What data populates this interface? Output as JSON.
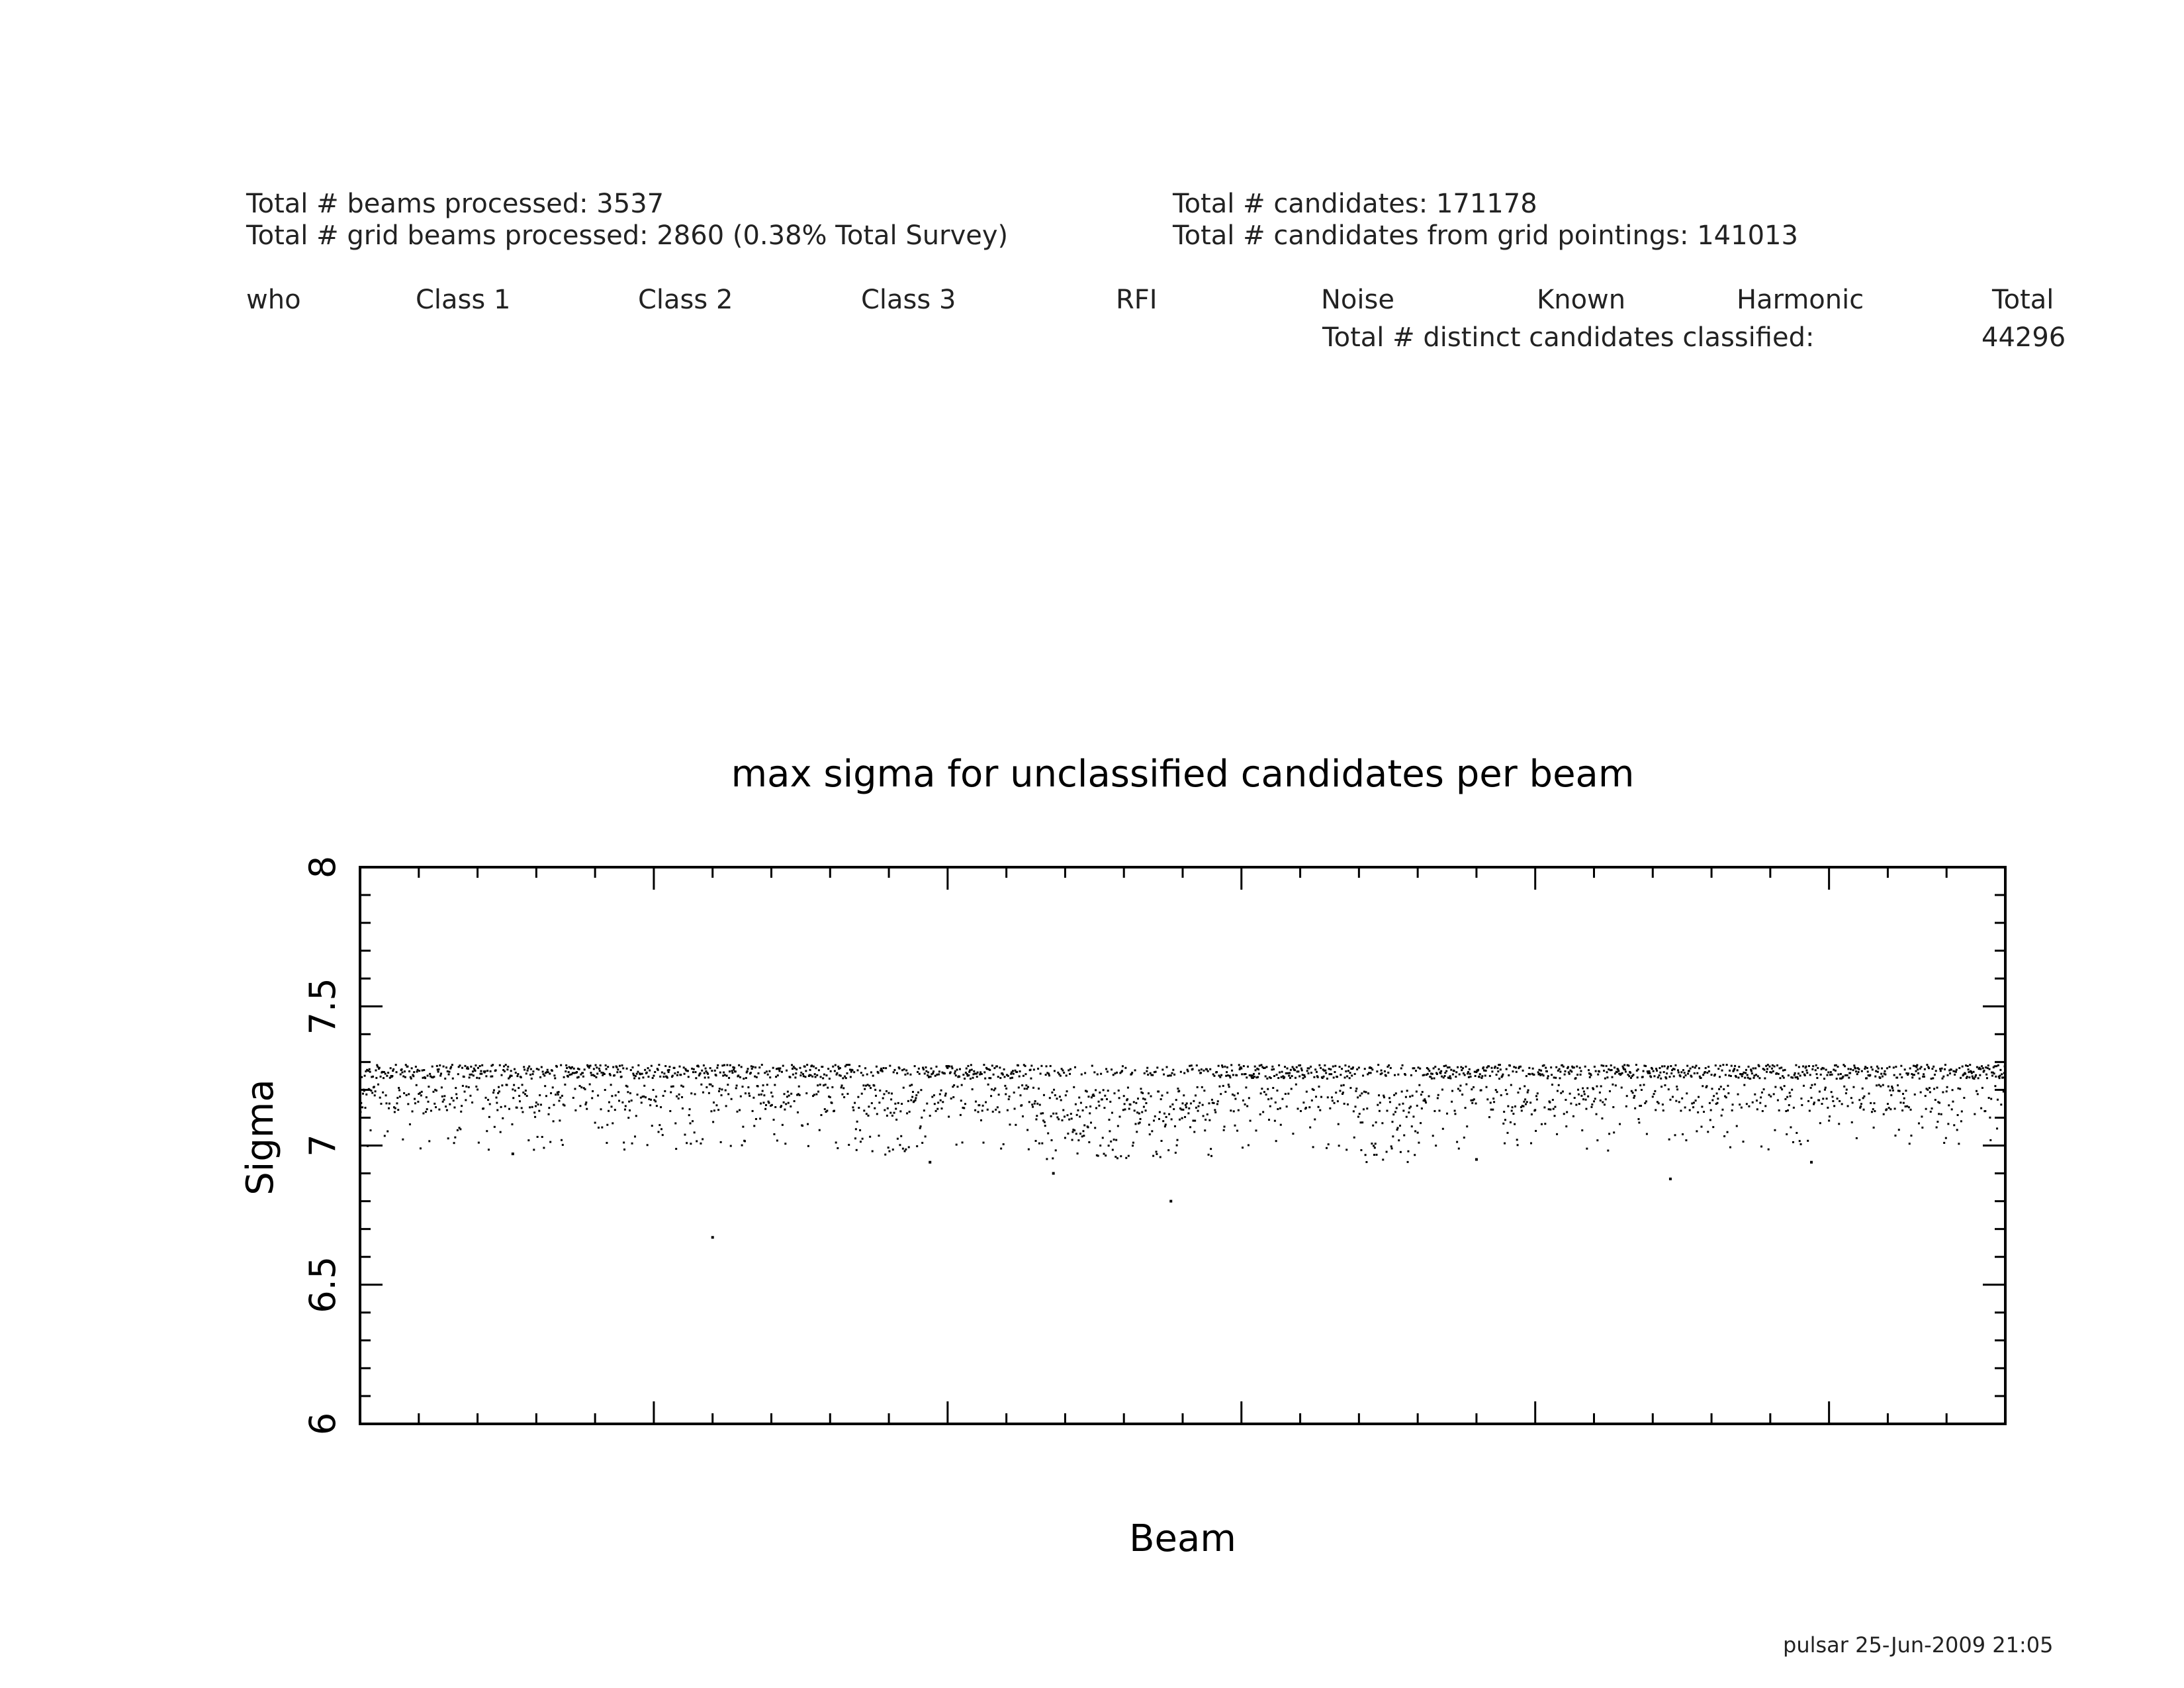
{
  "summary": {
    "beams_processed": "Total # beams processed: 3537",
    "grid_beams_processed": "Total # grid beams processed: 2860 (0.38% Total Survey)",
    "total_candidates": "Total # candidates: 171178",
    "grid_candidates": "Total # candidates from grid pointings: 141013"
  },
  "class_table": {
    "headers": [
      "who",
      "Class 1",
      "Class 2",
      "Class 3",
      "RFI",
      "Noise",
      "Known",
      "Harmonic",
      "Total"
    ],
    "distinct_label": "Total # distinct candidates classified:",
    "distinct_value": "44296"
  },
  "footer": {
    "stamp": "pulsar 25-Jun-2009 21:05"
  },
  "colors": {
    "ink": "#000000",
    "background": "#ffffff"
  },
  "chart_data": {
    "type": "scatter",
    "title": "max sigma for unclassified candidates per beam",
    "xlabel": "Beam",
    "ylabel": "Sigma",
    "ylim": [
      6,
      8
    ],
    "xlim": [
      0,
      2800
    ],
    "yticks": [
      "6",
      "6.5",
      "7",
      "7.5",
      "8"
    ],
    "x_tick_labels": "none",
    "grid": false,
    "marker": "dot",
    "series": [
      {
        "values_summary": "approximately one max-sigma point per beam; dense band between 7.0 and 7.29 with the upper edge near 7.29; dips near 7.1-7.2 around beams ~850-950, ~1150-1450 and ~1700-1800",
        "outliers": [
          {
            "x": 600,
            "y": 6.67
          },
          {
            "x": 1380,
            "y": 6.8
          },
          {
            "x": 1180,
            "y": 6.9
          },
          {
            "x": 260,
            "y": 6.97
          },
          {
            "x": 2230,
            "y": 6.88
          },
          {
            "x": 2470,
            "y": 6.94
          },
          {
            "x": 970,
            "y": 6.94
          },
          {
            "x": 1900,
            "y": 6.95
          }
        ]
      }
    ]
  }
}
